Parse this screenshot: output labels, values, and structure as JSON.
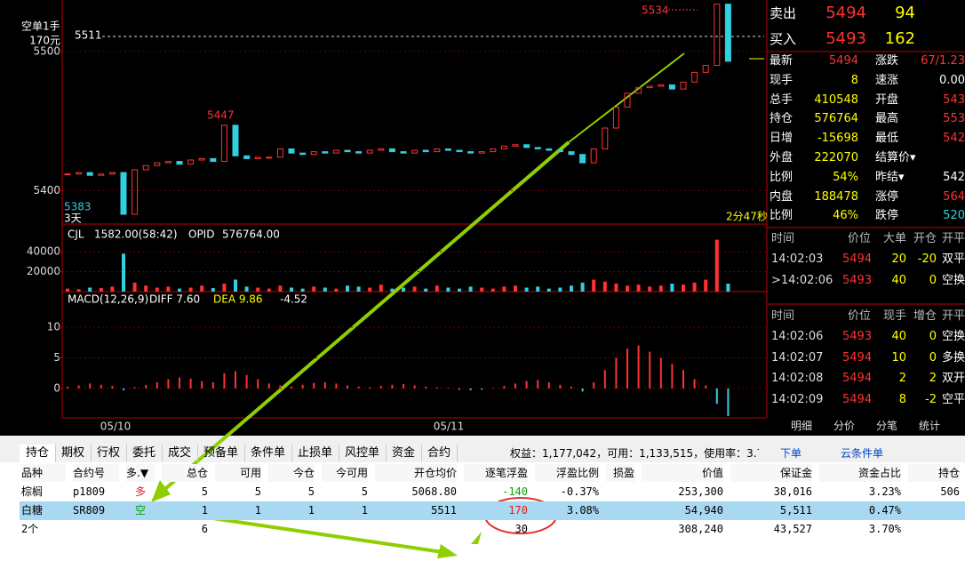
{
  "left_labels": {
    "position": "空单1手",
    "position_pnl": "170元",
    "line_price": "5511"
  },
  "price_chart": {
    "type": "candlestick",
    "ylim": [
      5376,
      5537
    ],
    "yticks": [
      5500,
      5400
    ],
    "closes": [
      5412,
      5413,
      5411,
      5412,
      5413,
      5383,
      5415,
      5418,
      5420,
      5421,
      5419,
      5422,
      5423,
      5421,
      5447,
      5425,
      5423,
      5424,
      5424,
      5430,
      5427,
      5426,
      5428,
      5427,
      5429,
      5428,
      5427,
      5429,
      5430,
      5428,
      5427,
      5429,
      5428,
      5430,
      5429,
      5428,
      5427,
      5428,
      5430,
      5432,
      5433,
      5431,
      5430,
      5429,
      5428,
      5426,
      5420,
      5430,
      5445,
      5460,
      5470,
      5474,
      5475,
      5476,
      5473,
      5478,
      5485,
      5490,
      5534,
      5493
    ],
    "annotations": {
      "high": "5534",
      "mid_high": "5447",
      "low": "5383",
      "days": "3天",
      "timer": "2分47秒"
    },
    "dates": [
      "05/10",
      "05/11"
    ]
  },
  "volume_chart": {
    "type": "bar",
    "legend": "CJL",
    "cjl": "1582.00(58:42)",
    "opid_label": "OPID",
    "opid": "576764.00",
    "ylim": [
      0,
      65000
    ],
    "yticks": [
      40000,
      20000
    ],
    "values": [
      3000,
      2500,
      4000,
      3500,
      5000,
      38000,
      9000,
      6000,
      4000,
      5000,
      3000,
      4000,
      6000,
      3500,
      8000,
      12000,
      5000,
      4000,
      3000,
      6000,
      4000,
      3000,
      5000,
      4000,
      3000,
      6000,
      5000,
      4000,
      7000,
      3000,
      4000,
      5000,
      3000,
      6000,
      4000,
      3000,
      5000,
      4000,
      3000,
      5000,
      6000,
      4000,
      5000,
      3000,
      4000,
      6000,
      9000,
      12000,
      10000,
      8000,
      6000,
      7000,
      5000,
      6000,
      8000,
      7000,
      9000,
      12000,
      52000,
      8000
    ]
  },
  "macd_chart": {
    "type": "bar",
    "title": "MACD(12,26,9)",
    "diff": "DIFF 7.60",
    "dea": "DEA 9.86",
    "macd": "-4.52",
    "ylim": [
      -4.8,
      15.8
    ],
    "yticks": [
      10,
      5,
      0
    ],
    "values": [
      0.3,
      0.5,
      0.8,
      0.6,
      0.4,
      -0.3,
      0.2,
      0.6,
      1.0,
      1.5,
      1.8,
      1.6,
      1.2,
      1.0,
      2.5,
      2.8,
      2.2,
      1.5,
      0.8,
      0.5,
      0.3,
      0.6,
      0.9,
      1.0,
      0.8,
      0.5,
      0.3,
      0.2,
      0.4,
      0.6,
      0.7,
      0.5,
      0.3,
      0.2,
      0.1,
      -0.2,
      -0.3,
      -0.2,
      0.1,
      0.4,
      0.8,
      1.2,
      1.4,
      1.0,
      0.6,
      0.3,
      -0.5,
      1.0,
      3.0,
      5.0,
      6.5,
      7.0,
      6.0,
      5.0,
      4.0,
      3.0,
      1.5,
      0.5,
      -2.5,
      -4.5
    ]
  },
  "quote": {
    "ask": [
      "卖出",
      "5494",
      "94"
    ],
    "bid": [
      "买入",
      "5493",
      "162"
    ],
    "rows": [
      [
        "最新",
        "5494",
        "涨跌",
        "67/1.23"
      ],
      [
        "现手",
        "8",
        "速涨",
        "0.00"
      ],
      [
        "总手",
        "410548",
        "开盘",
        "543"
      ],
      [
        "持仓",
        "576764",
        "最高",
        "553"
      ],
      [
        "日增",
        "-15698",
        "最低",
        "542"
      ],
      [
        "外盘",
        "222070",
        "结算价▾",
        ""
      ],
      [
        "比例",
        "54%",
        "昨结▾",
        "542"
      ],
      [
        "内盘",
        "188478",
        "涨停",
        "564"
      ],
      [
        "比例",
        "46%",
        "跌停",
        "520"
      ]
    ]
  },
  "ticks1": {
    "header": [
      "时间",
      "价位",
      "大单",
      "开仓",
      "开平"
    ],
    "rows": [
      [
        "14:02:03",
        "5494",
        "20",
        "-20",
        "双平"
      ],
      [
        ">14:02:06",
        "5493",
        "40",
        "0",
        "空换"
      ]
    ]
  },
  "ticks2": {
    "header": [
      "时间",
      "价位",
      "现手",
      "增仓",
      "开平"
    ],
    "rows": [
      [
        "14:02:06",
        "5493",
        "40",
        "0",
        "空换"
      ],
      [
        "14:02:07",
        "5494",
        "10",
        "0",
        "多换"
      ],
      [
        "14:02:08",
        "5494",
        "2",
        "2",
        "双开"
      ],
      [
        "14:02:09",
        "5494",
        "8",
        "-2",
        "空平"
      ]
    ]
  },
  "side_tabs": [
    "明细",
    "分价",
    "分笔",
    "统计"
  ],
  "tabs": [
    "持仓",
    "期权",
    "行权",
    "委托",
    "成交",
    "预备单",
    "条件单",
    "止损单",
    "风控单",
    "资金",
    "合约"
  ],
  "account": "权益：1,177,042，可用：1,133,515，使用率：3.7(",
  "buttons": [
    "下单",
    "云条件单"
  ],
  "table": {
    "header": [
      "品种",
      "合约号",
      "多.▼",
      "总仓",
      "可用",
      "今仓",
      "今可用",
      "开仓均价",
      "逐笔浮盈",
      "浮盈比例",
      "损盈",
      "价值",
      "保证金",
      "资金占比",
      "持仓"
    ],
    "rows": [
      [
        "棕榈",
        "p1809",
        "多",
        "5",
        "5",
        "5",
        "5",
        "5068.80",
        "-140",
        "-0.37%",
        "",
        "253,300",
        "38,016",
        "3.23%",
        "506"
      ],
      [
        "白糖",
        "SR809",
        "空",
        "1",
        "1",
        "1",
        "1",
        "5511",
        "170",
        "3.08%",
        "",
        "54,940",
        "5,511",
        "0.47%",
        ""
      ],
      [
        "2个",
        "",
        "",
        "6",
        "",
        "",
        "",
        "",
        "30",
        "",
        "",
        "308,240",
        "43,527",
        "3.70%",
        ""
      ]
    ]
  }
}
